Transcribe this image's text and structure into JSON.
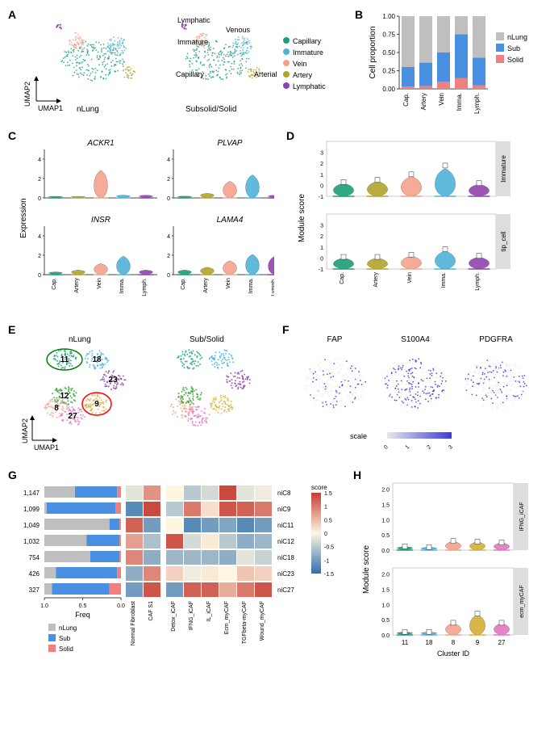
{
  "panels": {
    "A": "A",
    "B": "B",
    "C": "C",
    "D": "D",
    "E": "E",
    "F": "F",
    "G": "G",
    "H": "H"
  },
  "umap_axes": {
    "x": "UMAP1",
    "y": "UMAP2"
  },
  "panelA": {
    "left_title": "nLung",
    "right_title": "Subsolid/Solid",
    "callouts": {
      "lymphatic": "Lymphatic",
      "venous": "Venous",
      "immature": "Immature",
      "capillary": "Capillary",
      "arterial": "Arterial"
    },
    "legend": [
      {
        "name": "Capillary",
        "color": "#1b9e77"
      },
      {
        "name": "Immature",
        "color": "#4fb3d9"
      },
      {
        "name": "Vein",
        "color": "#f4a28c"
      },
      {
        "name": "Artery",
        "color": "#b2a52c"
      },
      {
        "name": "Lymphatic",
        "color": "#8e44ad"
      }
    ]
  },
  "panelB": {
    "ylabel": "Cell proportion",
    "yticks": [
      "0.00",
      "0.25",
      "0.50",
      "0.75",
      "1.00"
    ],
    "categories": [
      "Cap.",
      "Artery",
      "Vein",
      "Imma.",
      "Lymph."
    ],
    "legend": [
      {
        "name": "nLung",
        "color": "#bfbfbf"
      },
      {
        "name": "Sub",
        "color": "#4a90e2"
      },
      {
        "name": "Solid",
        "color": "#f08080"
      }
    ],
    "stacks": [
      {
        "solid": 0.03,
        "sub": 0.27,
        "nlung": 0.7
      },
      {
        "solid": 0.04,
        "sub": 0.32,
        "nlung": 0.64
      },
      {
        "solid": 0.1,
        "sub": 0.4,
        "nlung": 0.5
      },
      {
        "solid": 0.15,
        "sub": 0.6,
        "nlung": 0.25
      },
      {
        "solid": 0.05,
        "sub": 0.38,
        "nlung": 0.57
      }
    ]
  },
  "panelC": {
    "ylabel": "Expression",
    "genes": [
      "ACKR1",
      "PLVAP",
      "INSR",
      "LAMA4"
    ],
    "categories": [
      "Cap.",
      "Artery",
      "Vein",
      "Imma.",
      "Lymph."
    ],
    "colors": [
      "#1b9e77",
      "#b2a52c",
      "#f4a28c",
      "#4fb3d9",
      "#8e44ad"
    ],
    "ylim": [
      0,
      5
    ],
    "yticks": [
      0,
      2,
      4
    ],
    "violins": {
      "ACKR1": [
        0.1,
        0.1,
        3.0,
        0.3,
        0.3
      ],
      "PLVAP": [
        0.2,
        0.5,
        1.8,
        2.5,
        0.3
      ],
      "INSR": [
        0.3,
        0.5,
        1.2,
        2.0,
        0.5
      ],
      "LAMA4": [
        0.5,
        0.8,
        1.5,
        2.2,
        2.0
      ]
    }
  },
  "panelD": {
    "ylabel": "Module score",
    "categories": [
      "Cap.",
      "Artery",
      "Vein",
      "Imma.",
      "Lymph."
    ],
    "colors": [
      "#1b9e77",
      "#b2a52c",
      "#f4a28c",
      "#4fb3d9",
      "#8e44ad"
    ],
    "facets": [
      "Immature",
      "tip_cell"
    ],
    "ylim": [
      -1,
      4
    ],
    "yticks": [
      -1,
      0,
      1,
      2,
      3
    ],
    "data": {
      "Immature": [
        0.3,
        0.5,
        1.0,
        1.8,
        0.2
      ],
      "tip_cell": [
        0.1,
        0.1,
        0.3,
        0.8,
        0.2
      ]
    }
  },
  "panelE": {
    "left_title": "nLung",
    "right_title": "Sub/Solid",
    "cluster_labels": {
      "11": "11",
      "18": "18",
      "23": "23",
      "12": "12",
      "8": "8",
      "9": "9",
      "27": "27"
    },
    "cluster_colors": {
      "11": "#1b9e77",
      "18": "#4fb3d9",
      "23": "#8e44ad",
      "12": "#2ca02c",
      "8": "#f4a28c",
      "9": "#d4af37",
      "27": "#e377c2"
    }
  },
  "panelF": {
    "markers": [
      "FAP",
      "S100A4",
      "PDGFRA"
    ],
    "scale_label": "scale",
    "scale_ticks": [
      "0",
      "1",
      "2",
      "3"
    ],
    "low_color": "#e8e8e8",
    "high_color": "#3b3bdb"
  },
  "panelG": {
    "row_ids": [
      "niC8",
      "niC9",
      "niC11",
      "niC12",
      "niC18",
      "niC23",
      "niC27"
    ],
    "row_counts": [
      "1,147",
      "1,099",
      "1,049",
      "1,032",
      "754",
      "426",
      "327"
    ],
    "freq_xlabel": "Freq",
    "freq_xticks": [
      "1.0",
      "0.5",
      "0.0"
    ],
    "freq_legend": [
      {
        "name": "nLung",
        "color": "#bfbfbf"
      },
      {
        "name": "Sub",
        "color": "#4a90e2"
      },
      {
        "name": "Solid",
        "color": "#f08080"
      }
    ],
    "freq_data": [
      {
        "nlung": 0.4,
        "sub": 0.55,
        "solid": 0.05
      },
      {
        "nlung": 0.03,
        "sub": 0.9,
        "solid": 0.07
      },
      {
        "nlung": 0.85,
        "sub": 0.13,
        "solid": 0.02
      },
      {
        "nlung": 0.55,
        "sub": 0.43,
        "solid": 0.02
      },
      {
        "nlung": 0.6,
        "sub": 0.38,
        "solid": 0.02
      },
      {
        "nlung": 0.15,
        "sub": 0.8,
        "solid": 0.05
      },
      {
        "nlung": 0.1,
        "sub": 0.75,
        "solid": 0.15
      }
    ],
    "heatmap1_cols": [
      "Normal Fibroblast",
      "CAF S1"
    ],
    "heatmap2_cols": [
      "Detox_iCAF",
      "IFNG_iCAF",
      "IL_iCAF",
      "Ecm_myCAF",
      "TGFbeta-myCAF",
      "Wound_myCAF"
    ],
    "score_label": "score",
    "score_ticks": [
      "1.5",
      "1",
      "0.5",
      "0",
      "-0.5",
      "-1",
      "-1.5"
    ],
    "heat_colors": {
      "min": "#2e6fae",
      "mid": "#fef6e1",
      "max": "#c73c33"
    },
    "heatmap1": [
      [
        -0.2,
        0.8
      ],
      [
        -1.2,
        1.4
      ],
      [
        1.2,
        -1.0
      ],
      [
        0.7,
        -0.6
      ],
      [
        0.9,
        -0.8
      ],
      [
        -0.8,
        0.9
      ],
      [
        -1.0,
        1.3
      ]
    ],
    "heatmap2": [
      [
        0.0,
        -0.5,
        -0.3,
        1.4,
        -0.2,
        -0.1
      ],
      [
        -0.5,
        1.0,
        0.2,
        1.3,
        1.2,
        1.0
      ],
      [
        0.0,
        -1.2,
        -1.0,
        -0.9,
        -1.2,
        -1.0
      ],
      [
        1.3,
        -0.3,
        0.1,
        -0.5,
        -0.8,
        -0.7
      ],
      [
        -0.7,
        -0.7,
        -0.7,
        -0.8,
        -0.2,
        -0.4
      ],
      [
        0.3,
        -0.1,
        0.1,
        0.0,
        0.4,
        0.3
      ],
      [
        -1.0,
        1.2,
        1.2,
        0.6,
        1.0,
        1.3
      ]
    ]
  },
  "panelH": {
    "ylabel": "Module score",
    "xlabel": "Cluster ID",
    "categories": [
      "11",
      "18",
      "8",
      "9",
      "27"
    ],
    "colors": [
      "#1b9e77",
      "#4fb3d9",
      "#f4a28c",
      "#d4af37",
      "#e377c2"
    ],
    "facets": [
      "IFNG_iCAF",
      "ecm_myCAF"
    ],
    "ylim": [
      0,
      2.2
    ],
    "yticks": [
      "0.0",
      "0.5",
      "1.0",
      "1.5",
      "2.0"
    ],
    "data": {
      "IFNG_iCAF": [
        0.12,
        0.1,
        0.3,
        0.28,
        0.25
      ],
      "ecm_myCAF": [
        0.1,
        0.1,
        0.4,
        0.7,
        0.4
      ]
    }
  }
}
